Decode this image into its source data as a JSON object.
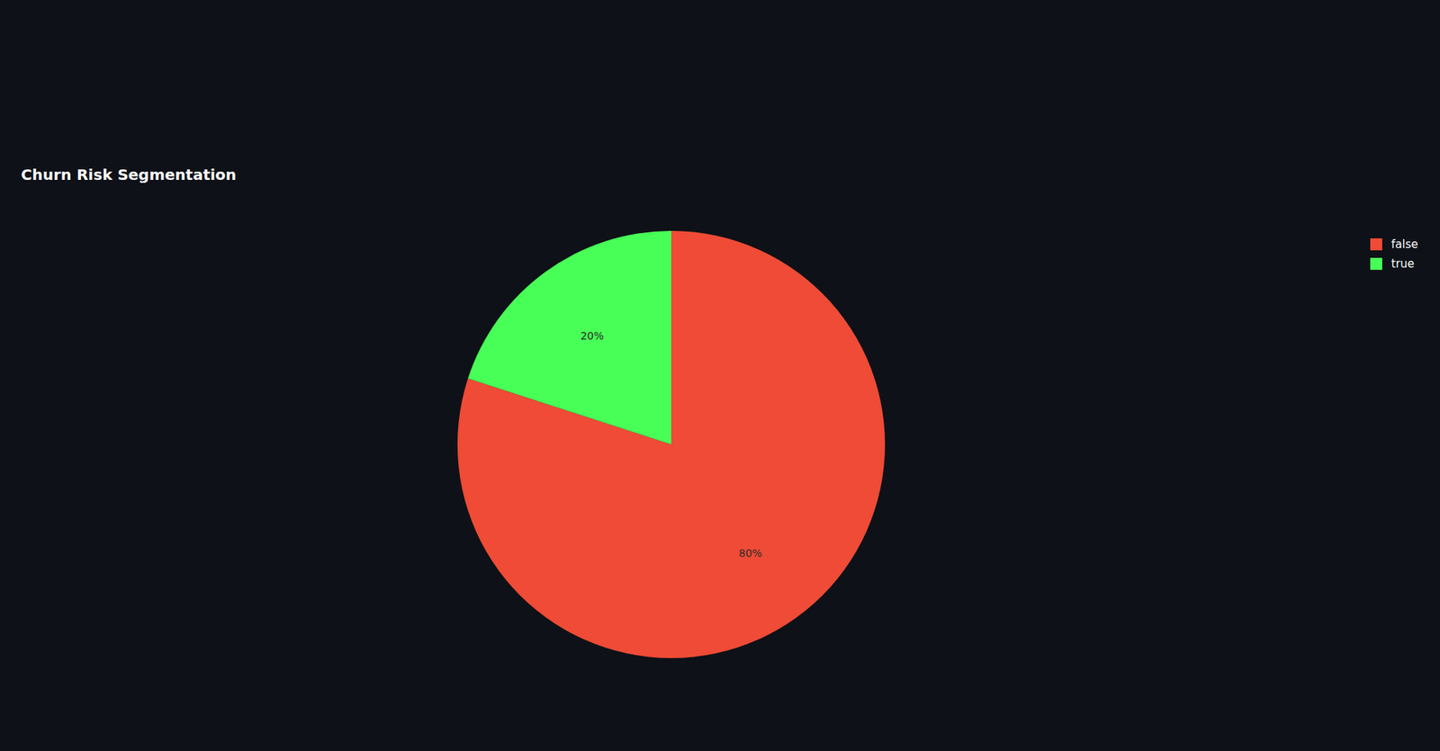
{
  "chart_data": {
    "type": "pie",
    "title": "Churn Risk Segmentation",
    "categories": [
      "false",
      "true"
    ],
    "values": [
      80,
      20
    ],
    "value_labels": [
      "80%",
      "20%"
    ],
    "colors": [
      "#ef4b36",
      "#47ff56"
    ],
    "data_labels": true,
    "legend": "top-right"
  }
}
